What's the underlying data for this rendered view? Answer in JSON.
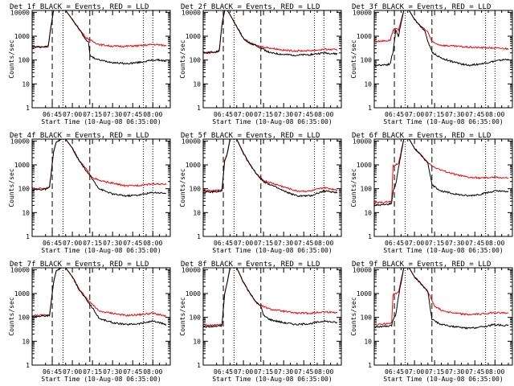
{
  "chart_data": {
    "type": "line",
    "xlabel": "Start Time (10-Aug-08 06:35:00)",
    "ylabel": "Counts/sec",
    "y_scale": "log",
    "ylim": [
      1,
      12000
    ],
    "xlim_minutes_after_06_35": [
      -5,
      98
    ],
    "x_tick_labels": [
      "06:45",
      "07:00",
      "07:15",
      "07:30",
      "07:45",
      "08:00"
    ],
    "y_tick_labels": [
      "1",
      "10",
      "100",
      "1000",
      "10000"
    ],
    "colors": {
      "events": "#000000",
      "lld": "#ff0000"
    },
    "layout": "3x3 grid, one panel per detector",
    "panels": [
      {
        "title": "Det_1f BLACK = Events, RED = LLD",
        "dashed_lines": [
          "06:45",
          "07:13"
        ],
        "dotted_lines": [
          "06:53",
          "07:53",
          "08:00"
        ],
        "series": [
          {
            "name": "Events",
            "times": [
              "06:30",
              "06:40",
              "06:42",
              "06:44",
              "06:46",
              "06:48",
              "06:50",
              "06:55",
              "07:00",
              "07:05",
              "07:10",
              "07:12",
              "07:13",
              "07:15",
              "07:20",
              "07:30",
              "07:40",
              "07:50",
              "08:00",
              "08:05",
              "08:10"
            ],
            "values": [
              350,
              360,
              380,
              2500,
              12000,
              12000,
              12000,
              12000,
              5000,
              2000,
              700,
              600,
              170,
              130,
              100,
              80,
              70,
              80,
              100,
              100,
              90
            ]
          },
          {
            "name": "LLD",
            "times": [
              "06:30",
              "06:40",
              "06:42",
              "06:44",
              "06:46",
              "06:48",
              "06:50",
              "06:55",
              "07:00",
              "07:05",
              "07:10",
              "07:15",
              "07:20",
              "07:30",
              "07:40",
              "07:50",
              "08:00",
              "08:05",
              "08:10"
            ],
            "values": [
              350,
              360,
              380,
              2500,
              12000,
              12000,
              12000,
              12000,
              5000,
              2000,
              900,
              600,
              450,
              380,
              380,
              400,
              450,
              430,
              400
            ]
          }
        ]
      },
      {
        "title": "Det_2f BLACK = Events, RED = LLD",
        "dashed_lines": [
          "06:45",
          "07:13"
        ],
        "dotted_lines": [
          "06:53",
          "07:53",
          "08:00"
        ],
        "series": [
          {
            "name": "Events",
            "times": [
              "06:30",
              "06:40",
              "06:42",
              "06:44",
              "06:46",
              "06:48",
              "06:50",
              "06:55",
              "07:00",
              "07:05",
              "07:10",
              "07:15",
              "07:20",
              "07:30",
              "07:40",
              "07:50",
              "08:00",
              "08:10"
            ],
            "values": [
              200,
              220,
              250,
              3000,
              12000,
              12000,
              8000,
              2500,
              800,
              500,
              400,
              280,
              200,
              170,
              160,
              170,
              200,
              180
            ]
          },
          {
            "name": "LLD",
            "times": [
              "06:30",
              "06:40",
              "06:42",
              "06:44",
              "06:46",
              "06:48",
              "06:50",
              "06:55",
              "07:00",
              "07:05",
              "07:10",
              "07:15",
              "07:20",
              "07:30",
              "07:40",
              "07:50",
              "08:00",
              "08:10"
            ],
            "values": [
              200,
              220,
              250,
              3000,
              12000,
              12000,
              8000,
              2500,
              800,
              500,
              400,
              350,
              320,
              260,
              240,
              250,
              280,
              270
            ]
          }
        ]
      },
      {
        "title": "Det_3f BLACK = Events, RED = LLD",
        "dashed_lines": [
          "06:45",
          "07:13"
        ],
        "dotted_lines": [
          "06:53",
          "07:53",
          "08:00"
        ],
        "series": [
          {
            "name": "Events",
            "times": [
              "06:30",
              "06:40",
              "06:42",
              "06:43",
              "06:44",
              "06:46",
              "06:48",
              "06:52",
              "06:56",
              "07:00",
              "07:05",
              "07:08",
              "07:10",
              "07:13",
              "07:15",
              "07:20",
              "07:30",
              "07:40",
              "07:50",
              "08:00",
              "08:10"
            ],
            "values": [
              60,
              65,
              70,
              150,
              200,
              1800,
              1000,
              12000,
              12000,
              5000,
              2500,
              1500,
              600,
              220,
              180,
              120,
              80,
              60,
              70,
              90,
              110
            ]
          },
          {
            "name": "LLD",
            "times": [
              "06:30",
              "06:40",
              "06:42",
              "06:44",
              "06:46",
              "06:48",
              "06:52",
              "06:56",
              "07:00",
              "07:05",
              "07:10",
              "07:13",
              "07:15",
              "07:20",
              "07:30",
              "07:40",
              "07:50",
              "08:00",
              "08:10"
            ],
            "values": [
              600,
              650,
              700,
              1800,
              2000,
              1800,
              12000,
              12000,
              5000,
              2500,
              1500,
              600,
              500,
              420,
              380,
              350,
              330,
              320,
              300
            ]
          }
        ]
      },
      {
        "title": "Det_4f BLACK = Events, RED = LLD",
        "dashed_lines": [
          "06:45",
          "07:13"
        ],
        "dotted_lines": [
          "06:53",
          "07:53",
          "08:00"
        ],
        "series": [
          {
            "name": "Events",
            "times": [
              "06:30",
              "06:40",
              "06:43",
              "06:46",
              "06:48",
              "06:52",
              "06:55",
              "07:00",
              "07:05",
              "07:10",
              "07:15",
              "07:20",
              "07:30",
              "07:40",
              "07:50",
              "08:00",
              "08:10"
            ],
            "values": [
              90,
              95,
              110,
              3500,
              9000,
              12000,
              12000,
              5000,
              1500,
              600,
              250,
              100,
              60,
              50,
              55,
              70,
              65
            ]
          },
          {
            "name": "LLD",
            "times": [
              "06:30",
              "06:40",
              "06:43",
              "06:46",
              "06:48",
              "06:52",
              "06:55",
              "07:00",
              "07:05",
              "07:10",
              "07:15",
              "07:20",
              "07:30",
              "07:40",
              "07:50",
              "08:00",
              "08:10"
            ],
            "values": [
              100,
              105,
              120,
              3500,
              9000,
              12000,
              12000,
              5000,
              1500,
              700,
              300,
              220,
              170,
              130,
              140,
              160,
              150
            ]
          }
        ]
      },
      {
        "title": "Det_5f BLACK = Events, RED = LLD",
        "dashed_lines": [
          "06:45",
          "07:13"
        ],
        "dotted_lines": [
          "06:53",
          "07:53",
          "08:00"
        ],
        "series": [
          {
            "name": "Events",
            "times": [
              "06:30",
              "06:40",
              "06:44",
              "06:46",
              "06:48",
              "06:50",
              "06:52",
              "06:55",
              "07:00",
              "07:05",
              "07:10",
              "07:15",
              "07:20",
              "07:30",
              "07:40",
              "07:50",
              "08:00",
              "08:10"
            ],
            "values": [
              70,
              75,
              80,
              1500,
              3000,
              12000,
              12000,
              12000,
              3000,
              1000,
              400,
              200,
              150,
              80,
              50,
              50,
              80,
              70
            ]
          },
          {
            "name": "LLD",
            "times": [
              "06:30",
              "06:40",
              "06:44",
              "06:46",
              "06:48",
              "06:50",
              "06:52",
              "06:55",
              "07:00",
              "07:05",
              "07:10",
              "07:15",
              "07:20",
              "07:30",
              "07:40",
              "07:50",
              "08:00",
              "08:10"
            ],
            "values": [
              80,
              85,
              90,
              1500,
              3000,
              12000,
              12000,
              12000,
              3000,
              1000,
              400,
              220,
              180,
              120,
              80,
              80,
              110,
              90
            ]
          }
        ]
      },
      {
        "title": "Det_6f BLACK = Events, RED = LLD",
        "dashed_lines": [
          "06:45",
          "07:13"
        ],
        "dotted_lines": [
          "06:53",
          "07:53",
          "08:00"
        ],
        "series": [
          {
            "name": "Events",
            "times": [
              "06:30",
              "06:40",
              "06:43",
              "06:44",
              "06:46",
              "06:48",
              "06:52",
              "06:56",
              "07:00",
              "07:05",
              "07:10",
              "07:13",
              "07:15",
              "07:20",
              "07:30",
              "07:40",
              "07:50",
              "08:00",
              "08:10"
            ],
            "values": [
              20,
              22,
              25,
              80,
              150,
              700,
              12000,
              12000,
              5000,
              2500,
              1200,
              150,
              120,
              80,
              60,
              50,
              60,
              80,
              75
            ]
          },
          {
            "name": "LLD",
            "times": [
              "06:30",
              "06:40",
              "06:43",
              "06:44",
              "06:46",
              "06:48",
              "06:52",
              "06:56",
              "07:00",
              "07:05",
              "07:10",
              "07:15",
              "07:20",
              "07:30",
              "07:40",
              "07:50",
              "08:00",
              "08:10"
            ],
            "values": [
              25,
              28,
              30,
              900,
              1000,
              1100,
              12000,
              12000,
              5000,
              2500,
              1200,
              800,
              600,
              400,
              300,
              280,
              300,
              280
            ]
          }
        ]
      },
      {
        "title": "Det_7f BLACK = Events, RED = LLD",
        "dashed_lines": [
          "06:45",
          "07:13"
        ],
        "dotted_lines": [
          "06:53",
          "07:53",
          "08:00"
        ],
        "series": [
          {
            "name": "Events",
            "times": [
              "06:30",
              "06:40",
              "06:43",
              "06:46",
              "06:48",
              "06:52",
              "06:55",
              "07:00",
              "07:05",
              "07:10",
              "07:15",
              "07:20",
              "07:30",
              "07:40",
              "07:50",
              "08:00",
              "08:10"
            ],
            "values": [
              110,
              115,
              120,
              3000,
              9000,
              12000,
              12000,
              5000,
              1500,
              600,
              250,
              90,
              60,
              50,
              55,
              70,
              50
            ]
          },
          {
            "name": "LLD",
            "times": [
              "06:30",
              "06:40",
              "06:43",
              "06:46",
              "06:48",
              "06:52",
              "06:55",
              "07:00",
              "07:05",
              "07:10",
              "07:15",
              "07:20",
              "07:30",
              "07:40",
              "07:50",
              "08:00",
              "08:10"
            ],
            "values": [
              120,
              125,
              130,
              3000,
              9000,
              12000,
              12000,
              5000,
              1500,
              700,
              350,
              180,
              150,
              120,
              130,
              150,
              110
            ]
          }
        ]
      },
      {
        "title": "Det_8f BLACK = Events, RED = LLD",
        "dashed_lines": [
          "06:45",
          "07:13"
        ],
        "dotted_lines": [
          "06:53",
          "07:53",
          "08:00"
        ],
        "series": [
          {
            "name": "Events",
            "times": [
              "06:30",
              "06:40",
              "06:44",
              "06:46",
              "06:48",
              "06:50",
              "06:52",
              "06:55",
              "07:00",
              "07:05",
              "07:10",
              "07:13",
              "07:15",
              "07:20",
              "07:30",
              "07:40",
              "07:50",
              "08:00",
              "08:10"
            ],
            "values": [
              40,
              42,
              45,
              1000,
              3000,
              12000,
              12000,
              12000,
              3000,
              1000,
              400,
              300,
              120,
              80,
              60,
              50,
              55,
              70,
              60
            ]
          },
          {
            "name": "LLD",
            "times": [
              "06:30",
              "06:40",
              "06:44",
              "06:46",
              "06:48",
              "06:50",
              "06:52",
              "06:55",
              "07:00",
              "07:05",
              "07:10",
              "07:15",
              "07:20",
              "07:30",
              "07:40",
              "07:50",
              "08:00",
              "08:10"
            ],
            "values": [
              45,
              48,
              50,
              1000,
              3000,
              12000,
              12000,
              12000,
              3000,
              1000,
              400,
              280,
              220,
              180,
              150,
              150,
              170,
              160
            ]
          }
        ]
      },
      {
        "title": "Det_9f BLACK = Events, RED = LLD",
        "dashed_lines": [
          "06:45",
          "07:13"
        ],
        "dotted_lines": [
          "06:53",
          "07:53",
          "08:00"
        ],
        "series": [
          {
            "name": "Events",
            "times": [
              "06:30",
              "06:40",
              "06:43",
              "06:44",
              "06:46",
              "06:48",
              "06:52",
              "06:56",
              "07:00",
              "07:05",
              "07:10",
              "07:13",
              "07:15",
              "07:20",
              "07:30",
              "07:40",
              "07:50",
              "08:00",
              "08:10"
            ],
            "values": [
              40,
              42,
              45,
              80,
              130,
              700,
              12000,
              12000,
              5000,
              2500,
              1200,
              80,
              70,
              50,
              40,
              35,
              40,
              50,
              45
            ]
          },
          {
            "name": "LLD",
            "times": [
              "06:30",
              "06:40",
              "06:43",
              "06:44",
              "06:46",
              "06:48",
              "06:52",
              "06:56",
              "07:00",
              "07:05",
              "07:10",
              "07:15",
              "07:20",
              "07:30",
              "07:40",
              "07:50",
              "08:00",
              "08:10"
            ],
            "values": [
              50,
              55,
              60,
              900,
              1000,
              1100,
              12000,
              12000,
              5000,
              2500,
              1200,
              300,
              200,
              150,
              130,
              140,
              160,
              150
            ]
          }
        ]
      }
    ]
  }
}
